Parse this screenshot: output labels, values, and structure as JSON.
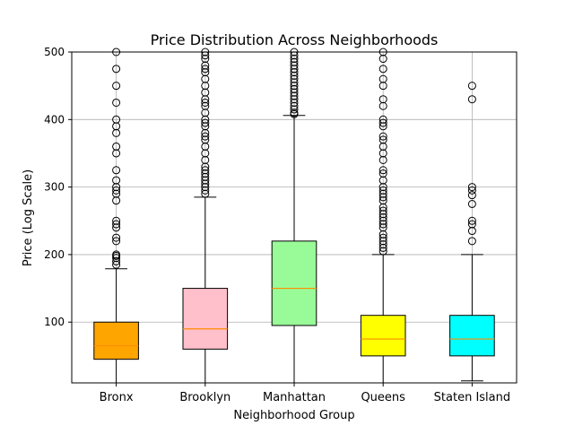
{
  "chart_data": {
    "type": "box",
    "title": "Price Distribution Across Neighborhoods",
    "xlabel": "Neighborhood Group",
    "ylabel": "Price (Log Scale)",
    "ylim": [
      10,
      500
    ],
    "yticks": [
      100,
      200,
      300,
      400,
      500
    ],
    "grid": true,
    "categories": [
      "Bronx",
      "Brooklyn",
      "Manhattan",
      "Queens",
      "Staten Island"
    ],
    "boxes": [
      {
        "category": "Bronx",
        "color": "#FFA500",
        "whisker_low": 10,
        "q1": 45,
        "median": 65,
        "q3": 100,
        "whisker_high": 179,
        "outliers": [
          185,
          190,
          195,
          198,
          200,
          220,
          225,
          240,
          245,
          250,
          280,
          290,
          295,
          300,
          310,
          325,
          350,
          360,
          380,
          390,
          400,
          425,
          450,
          475,
          500
        ]
      },
      {
        "category": "Brooklyn",
        "color": "#FFC0CB",
        "whisker_low": 10,
        "q1": 60,
        "median": 90,
        "q3": 150,
        "whisker_high": 285,
        "outliers": [
          290,
          295,
          300,
          305,
          310,
          315,
          320,
          325,
          330,
          340,
          350,
          360,
          370,
          375,
          380,
          390,
          395,
          400,
          410,
          420,
          425,
          430,
          440,
          450,
          460,
          470,
          475,
          480,
          490,
          495,
          500
        ]
      },
      {
        "category": "Manhattan",
        "color": "#98FB98",
        "whisker_low": 10,
        "q1": 95,
        "median": 150,
        "q3": 220,
        "whisker_high": 406,
        "outliers": [
          408,
          410,
          415,
          420,
          425,
          430,
          435,
          440,
          445,
          450,
          455,
          460,
          465,
          470,
          475,
          480,
          485,
          490,
          495,
          500
        ]
      },
      {
        "category": "Queens",
        "color": "#FFFF00",
        "whisker_low": 10,
        "q1": 50,
        "median": 75,
        "q3": 110,
        "whisker_high": 200,
        "outliers": [
          205,
          210,
          215,
          220,
          225,
          230,
          240,
          245,
          250,
          255,
          260,
          265,
          270,
          280,
          285,
          290,
          295,
          300,
          310,
          320,
          325,
          340,
          350,
          360,
          370,
          375,
          390,
          395,
          400,
          420,
          430,
          450,
          460,
          475,
          490,
          500
        ]
      },
      {
        "category": "Staten Island",
        "color": "#00FFFF",
        "whisker_low": 13,
        "q1": 50,
        "median": 75,
        "q3": 110,
        "whisker_high": 200,
        "outliers": [
          220,
          235,
          245,
          250,
          275,
          288,
          295,
          300,
          430,
          450
        ]
      }
    ],
    "median_color": "#FF8C00"
  }
}
